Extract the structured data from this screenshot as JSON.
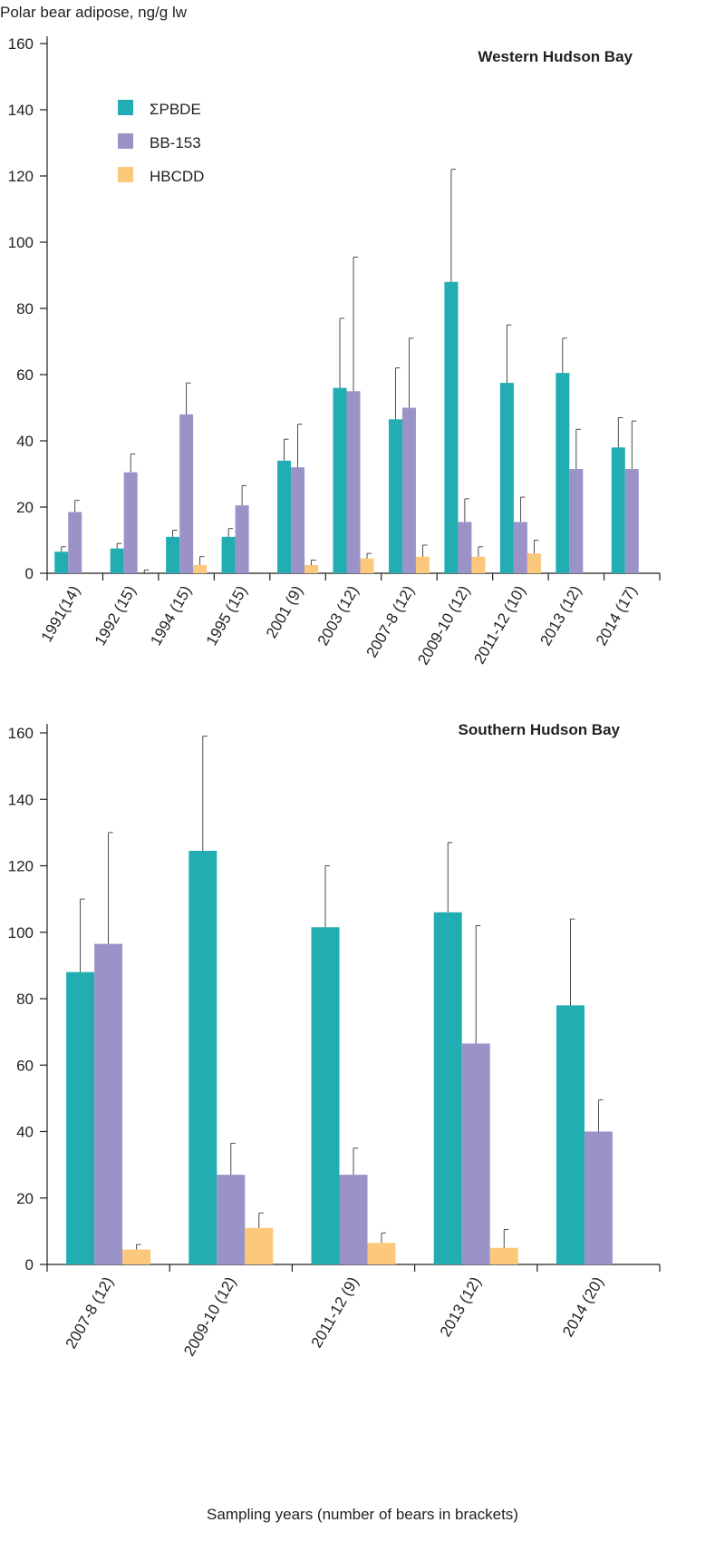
{
  "ylabel": "Polar bear adipose, ng/g lw",
  "xlabel": "Sampling years (number of bears in brackets)",
  "colors": {
    "pbde": "#21adb2",
    "bb153": "#9b93c8",
    "hbcdd": "#fbc87c",
    "axis": "#231f20"
  },
  "legend": [
    {
      "key": "pbde",
      "label": "ΣPBDE"
    },
    {
      "key": "bb153",
      "label": "BB-153"
    },
    {
      "key": "hbcdd",
      "label": "HBCDD"
    }
  ],
  "chart_data": [
    {
      "type": "bar",
      "title": "Western Hudson Bay",
      "ylim": [
        0,
        160
      ],
      "yticks": [
        0,
        20,
        40,
        60,
        80,
        100,
        120,
        140,
        160
      ],
      "legend_position": "top-left",
      "categories": [
        "1991(14)",
        "1992 (15)",
        "1994 (15)",
        "1995 (15)",
        "2001 (9)",
        "2003 (12)",
        "2007-8 (12)",
        "2009-10 (12)",
        "2011-12 (10)",
        "2013 (12)",
        "2014 (17)"
      ],
      "series": [
        {
          "name": "ΣPBDE",
          "key": "pbde",
          "values": [
            6.5,
            7.5,
            11,
            11,
            34,
            56,
            46.5,
            88,
            57.5,
            60.5,
            38
          ],
          "errors": [
            8,
            9,
            13,
            13.5,
            40.5,
            77,
            62,
            122,
            75,
            71,
            47
          ]
        },
        {
          "name": "BB-153",
          "key": "bb153",
          "values": [
            18.5,
            30.5,
            48,
            20.5,
            32,
            55,
            50,
            15.5,
            15.5,
            31.5,
            31.5
          ],
          "errors": [
            22,
            36,
            57.5,
            26.5,
            45,
            95.5,
            71,
            22.5,
            23,
            43.5,
            46
          ]
        },
        {
          "name": "HBCDD",
          "key": "hbcdd",
          "values": [
            null,
            null,
            2.5,
            null,
            2.5,
            4.5,
            5,
            5,
            6,
            null,
            null
          ],
          "errors": [
            null,
            1,
            5,
            null,
            4,
            6,
            8.5,
            8,
            10,
            null,
            null
          ]
        }
      ]
    },
    {
      "type": "bar",
      "title": "Southern Hudson Bay",
      "ylim": [
        0,
        160
      ],
      "yticks": [
        0,
        20,
        40,
        60,
        80,
        100,
        120,
        140,
        160
      ],
      "categories": [
        "2007-8 (12)",
        "2009-10 (12)",
        "2011-12 (9)",
        "2013 (12)",
        "2014 (20)"
      ],
      "series": [
        {
          "name": "ΣPBDE",
          "key": "pbde",
          "values": [
            88,
            124.5,
            101.5,
            106,
            78
          ],
          "errors": [
            110,
            159,
            120,
            127,
            104
          ]
        },
        {
          "name": "BB-153",
          "key": "bb153",
          "values": [
            96.5,
            27,
            27,
            66.5,
            40
          ],
          "errors": [
            130,
            36.5,
            35,
            102,
            49.5
          ]
        },
        {
          "name": "HBCDD",
          "key": "hbcdd",
          "values": [
            4.5,
            11,
            6.5,
            5,
            null
          ],
          "errors": [
            6,
            15.5,
            9.5,
            10.5,
            null
          ]
        }
      ]
    }
  ]
}
